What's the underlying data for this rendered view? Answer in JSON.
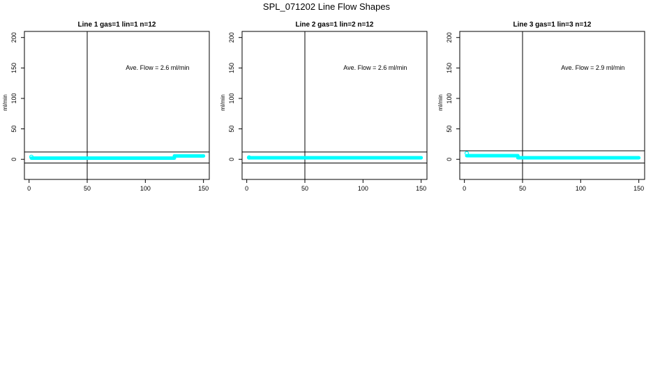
{
  "figure": {
    "title": "SPL_071202  Line Flow Shapes"
  },
  "colors": {
    "series": "#00ffff",
    "axis": "#000000"
  },
  "chart_data": [
    {
      "type": "scatter",
      "title": "Line 1 gas=1 lin=1 n=12",
      "ylabel": "ml/min",
      "xlabel": "",
      "xlim": [
        -4,
        155
      ],
      "ylim": [
        -33,
        210
      ],
      "xticks": [
        0,
        50,
        100,
        150
      ],
      "yticks": [
        0,
        50,
        100,
        150,
        200
      ],
      "vline": 50,
      "hlines": [
        12,
        -6
      ],
      "annotation": "Ave. Flow =  2.6  ml/min",
      "series": [
        {
          "segments": [
            {
              "x": [
                2,
                125
              ],
              "y": 2
            },
            {
              "x": [
                125,
                150
              ],
              "y": 5.5
            }
          ],
          "start_point": {
            "x": 2,
            "y": 4
          }
        }
      ],
      "grid": false,
      "legend": "none"
    },
    {
      "type": "scatter",
      "title": "Line 2 gas=1 lin=2 n=12",
      "ylabel": "ml/min",
      "xlabel": "",
      "xlim": [
        -4,
        155
      ],
      "ylim": [
        -33,
        210
      ],
      "xticks": [
        0,
        50,
        100,
        150
      ],
      "yticks": [
        0,
        50,
        100,
        150,
        200
      ],
      "vline": 50,
      "hlines": [
        12,
        -6
      ],
      "annotation": "Ave. Flow =  2.6  ml/min",
      "series": [
        {
          "segments": [
            {
              "x": [
                2,
                150
              ],
              "y": 2.6
            }
          ],
          "start_point": {
            "x": 2,
            "y": 3
          }
        }
      ],
      "grid": false,
      "legend": "none"
    },
    {
      "type": "scatter",
      "title": "Line 3 gas=1 lin=3 n=12",
      "ylabel": "ml/min",
      "xlabel": "",
      "xlim": [
        -4,
        155
      ],
      "ylim": [
        -33,
        210
      ],
      "xticks": [
        0,
        50,
        100,
        150
      ],
      "yticks": [
        0,
        50,
        100,
        150,
        200
      ],
      "vline": 50,
      "hlines": [
        14,
        -6
      ],
      "annotation": "Ave. Flow =  2.9  ml/min",
      "series": [
        {
          "segments": [
            {
              "x": [
                2,
                46
              ],
              "y": 6
            },
            {
              "x": [
                46,
                150
              ],
              "y": 2.5
            }
          ],
          "start_point": {
            "x": 2,
            "y": 10
          }
        }
      ],
      "grid": false,
      "legend": "none"
    }
  ]
}
